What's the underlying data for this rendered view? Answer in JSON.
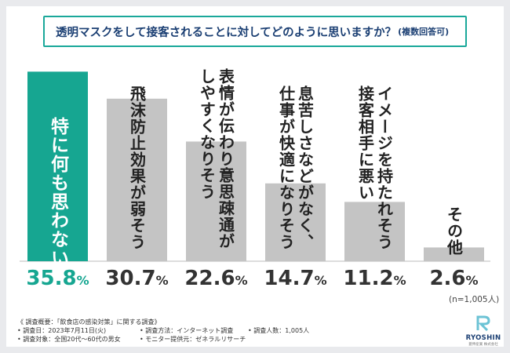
{
  "question": {
    "text": "透明マスクをして接客されることに対してどのように思いますか？",
    "suffix": "(複数回答可)"
  },
  "chart_data": {
    "type": "bar",
    "categories": [
      "特に何も思わない",
      "飛沫防止効果が弱そう",
      "表情が伝わり意思疎通がしやすくなりそう",
      "息苦しさなどがなく、仕事が快適になりそう",
      "イメージを持たれそう接客相手に悪い",
      "その他"
    ],
    "label_lines": [
      [
        "特に何も思わない"
      ],
      [
        "飛沫防止効果が弱そう"
      ],
      [
        "表情が伝わり意思疎通が",
        "しやすくなりそう"
      ],
      [
        "息苦しさなどがなく、",
        "仕事が快適になりそう"
      ],
      [
        "イメージを持たれそう",
        "接客相手に悪い"
      ],
      [
        "その他"
      ]
    ],
    "values": [
      35.8,
      30.7,
      22.6,
      14.7,
      11.2,
      2.6
    ],
    "value_labels": [
      {
        "num": "35.8",
        "unit": "%"
      },
      {
        "num": "30.7",
        "unit": "%"
      },
      {
        "num": "22.6",
        "unit": "%"
      },
      {
        "num": "14.7",
        "unit": "%"
      },
      {
        "num": "11.2",
        "unit": "%"
      },
      {
        "num": "2.6",
        "unit": "%"
      }
    ],
    "ylim": [
      0,
      36
    ],
    "highlight_index": 0,
    "colors": {
      "highlight": "#16a691",
      "default": "#c4c4c4",
      "baseline": "#bbbbbb"
    },
    "grid": false,
    "legend": "none"
  },
  "note": "(n=1,005人)",
  "footer": {
    "heading": "《 調査概要：「飲食店の感染対策」に関する調査》",
    "items": [
      "• 調査日：2023年7月11日(火)",
      "• 調査方法：インターネット調査",
      "• 調査人数：1,005人",
      "• 調査対象：全国20代～60代の男女",
      "• モニター提供元：ゼネラルリサーチ"
    ]
  },
  "logo": {
    "brand": "RYOSHIN",
    "sub": "菱伸産業 株式会社",
    "icon": "ryoshin-r-logo-icon"
  }
}
